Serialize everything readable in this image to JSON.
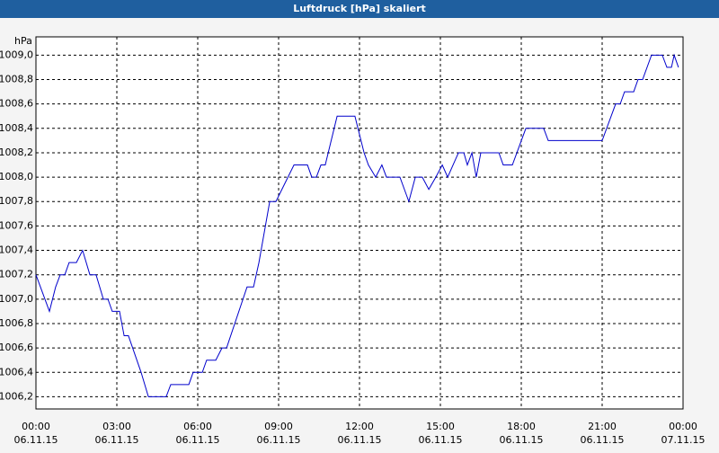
{
  "chart_data": {
    "type": "line",
    "title": "Luftdruck [hPa] skaliert",
    "y_label": "hPa",
    "x": [
      0,
      0.5,
      0.73,
      0.9,
      1.07,
      1.23,
      1.5,
      1.73,
      2.0,
      2.23,
      2.5,
      2.67,
      2.83,
      3.1,
      3.27,
      3.43,
      3.9,
      4.17,
      4.83,
      5.0,
      5.67,
      5.83,
      6.17,
      6.33,
      6.67,
      6.9,
      7.07,
      7.83,
      8.07,
      8.27,
      8.67,
      8.9,
      9.57,
      10.07,
      10.23,
      10.4,
      10.57,
      10.73,
      11.17,
      11.83,
      12.17,
      12.33,
      12.6,
      12.83,
      13.0,
      13.5,
      13.83,
      14.07,
      14.33,
      14.57,
      14.83,
      15.07,
      15.27,
      15.67,
      15.87,
      16.0,
      16.17,
      16.33,
      16.5,
      17.17,
      17.33,
      17.67,
      18.17,
      18.83,
      19.0,
      21.0,
      21.5,
      21.67,
      21.83,
      22.17,
      22.33,
      22.5,
      22.83,
      23.23,
      23.4,
      23.57,
      23.67,
      23.83
    ],
    "series": [
      {
        "name": "Luftdruck",
        "color": "#0000cc",
        "values": [
          1007.2,
          1006.9,
          1007.1,
          1007.2,
          1007.2,
          1007.3,
          1007.3,
          1007.4,
          1007.2,
          1007.2,
          1007.0,
          1007.0,
          1006.9,
          1006.9,
          1006.7,
          1006.7,
          1006.4,
          1006.2,
          1006.2,
          1006.3,
          1006.3,
          1006.4,
          1006.4,
          1006.5,
          1006.5,
          1006.6,
          1006.6,
          1007.1,
          1007.1,
          1007.3,
          1007.8,
          1007.8,
          1008.1,
          1008.1,
          1008.0,
          1008.0,
          1008.1,
          1008.1,
          1008.5,
          1008.5,
          1008.2,
          1008.1,
          1008.0,
          1008.1,
          1008.0,
          1008.0,
          1007.8,
          1008.0,
          1008.0,
          1007.9,
          1008.0,
          1008.1,
          1008.0,
          1008.2,
          1008.2,
          1008.1,
          1008.2,
          1008.0,
          1008.2,
          1008.2,
          1008.1,
          1008.1,
          1008.4,
          1008.4,
          1008.3,
          1008.3,
          1008.6,
          1008.6,
          1008.7,
          1008.7,
          1008.8,
          1008.8,
          1009.0,
          1009.0,
          1008.9,
          1008.9,
          1009.0,
          1008.9
        ]
      }
    ],
    "xlim": [
      0,
      24
    ],
    "ylim": [
      1006.1,
      1009.15
    ],
    "xticks": [
      {
        "value": 0,
        "label": "00:00"
      },
      {
        "value": 3,
        "label": "03:00"
      },
      {
        "value": 6,
        "label": "06:00"
      },
      {
        "value": 9,
        "label": "09:00"
      },
      {
        "value": 12,
        "label": "12:00"
      },
      {
        "value": 15,
        "label": "15:00"
      },
      {
        "value": 18,
        "label": "18:00"
      },
      {
        "value": 21,
        "label": "21:00"
      },
      {
        "value": 24,
        "label": "00:00"
      }
    ],
    "xtick_dates": [
      "06.11.15",
      "06.11.15",
      "06.11.15",
      "06.11.15",
      "06.11.15",
      "06.11.15",
      "06.11.15",
      "06.11.15",
      "07.11.15"
    ],
    "yticks": [
      {
        "value": 1006.2,
        "label": "1006,2"
      },
      {
        "value": 1006.4,
        "label": "1006,4"
      },
      {
        "value": 1006.6,
        "label": "1006,6"
      },
      {
        "value": 1006.8,
        "label": "1006,8"
      },
      {
        "value": 1007.0,
        "label": "1007,0"
      },
      {
        "value": 1007.2,
        "label": "1007,2"
      },
      {
        "value": 1007.4,
        "label": "1007,4"
      },
      {
        "value": 1007.6,
        "label": "1007,6"
      },
      {
        "value": 1007.8,
        "label": "1007,8"
      },
      {
        "value": 1008.0,
        "label": "1008,0"
      },
      {
        "value": 1008.2,
        "label": "1008,2"
      },
      {
        "value": 1008.4,
        "label": "1008,4"
      },
      {
        "value": 1008.6,
        "label": "1008,6"
      },
      {
        "value": 1008.8,
        "label": "1008,8"
      },
      {
        "value": 1009.0,
        "label": "1009,0"
      }
    ],
    "grid": true
  }
}
